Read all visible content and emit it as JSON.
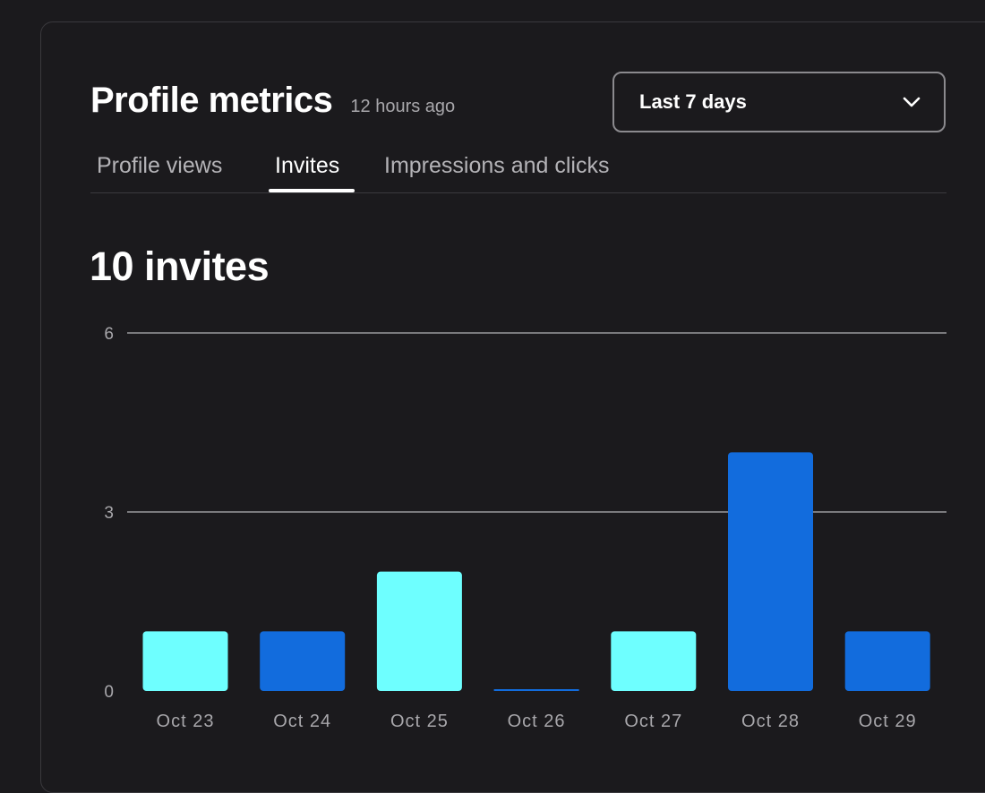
{
  "header": {
    "title": "Profile metrics",
    "updated": "12 hours ago"
  },
  "range_select": {
    "value": "Last 7 days",
    "icon": "chevron-down-icon"
  },
  "tabs": [
    {
      "label": "Profile views",
      "active": false
    },
    {
      "label": "Invites",
      "active": true
    },
    {
      "label": "Impressions and clicks",
      "active": false
    }
  ],
  "summary": {
    "total_label": "10 invites"
  },
  "colors": {
    "background": "#1b1a1d",
    "bar_light": "#6effff",
    "bar_dark": "#126cdd",
    "grid": "#9a999d",
    "tick": "#a8a7ab"
  },
  "chart_data": {
    "type": "bar",
    "categories": [
      "Oct 23",
      "Oct 24",
      "Oct 25",
      "Oct 26",
      "Oct 27",
      "Oct 28",
      "Oct 29"
    ],
    "values": [
      1,
      1,
      2,
      0,
      1,
      4,
      1
    ],
    "bar_colors": [
      "#6effff",
      "#126cdd",
      "#6effff",
      "#126cdd",
      "#6effff",
      "#126cdd",
      "#126cdd"
    ],
    "yticks": [
      0,
      3,
      6
    ],
    "ylim": [
      0,
      6
    ],
    "grid": true,
    "title": "",
    "xlabel": "",
    "ylabel": ""
  }
}
